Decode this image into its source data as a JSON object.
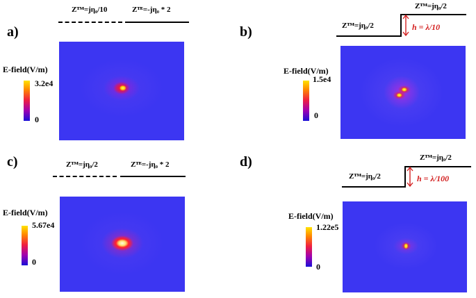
{
  "panels": [
    {
      "label": "a)",
      "left_impedance": "Zᵀᴹ=jη₀/10",
      "right_impedance": "Zᵀᴱ=-jη₀ * 2",
      "cb_title": "E-field(V/m)",
      "cb_max": "3.2e4",
      "cb_min": "0"
    },
    {
      "label": "b)",
      "left_impedance": "Zᵀᴹ=jη₀/2",
      "right_impedance": "Zᵀᴹ=jη₀/2",
      "height_label": "h = λ/10",
      "cb_title": "E-field(V/m)",
      "cb_max": "1.5e4",
      "cb_min": "0"
    },
    {
      "label": "c)",
      "left_impedance": "Zᵀᴹ=jη₀/2",
      "right_impedance": "Zᵀᴱ=-jη₀ * 2",
      "cb_title": "E-field(V/m)",
      "cb_max": "5.67e4",
      "cb_min": "0"
    },
    {
      "label": "d)",
      "left_impedance": "Zᵀᴹ=jη₀/2",
      "right_impedance": "Zᵀᴹ=jη₀/2",
      "height_label": "h = λ/100",
      "cb_title": "E-field(V/m)",
      "cb_max": "1.22e5",
      "cb_min": "0"
    }
  ]
}
